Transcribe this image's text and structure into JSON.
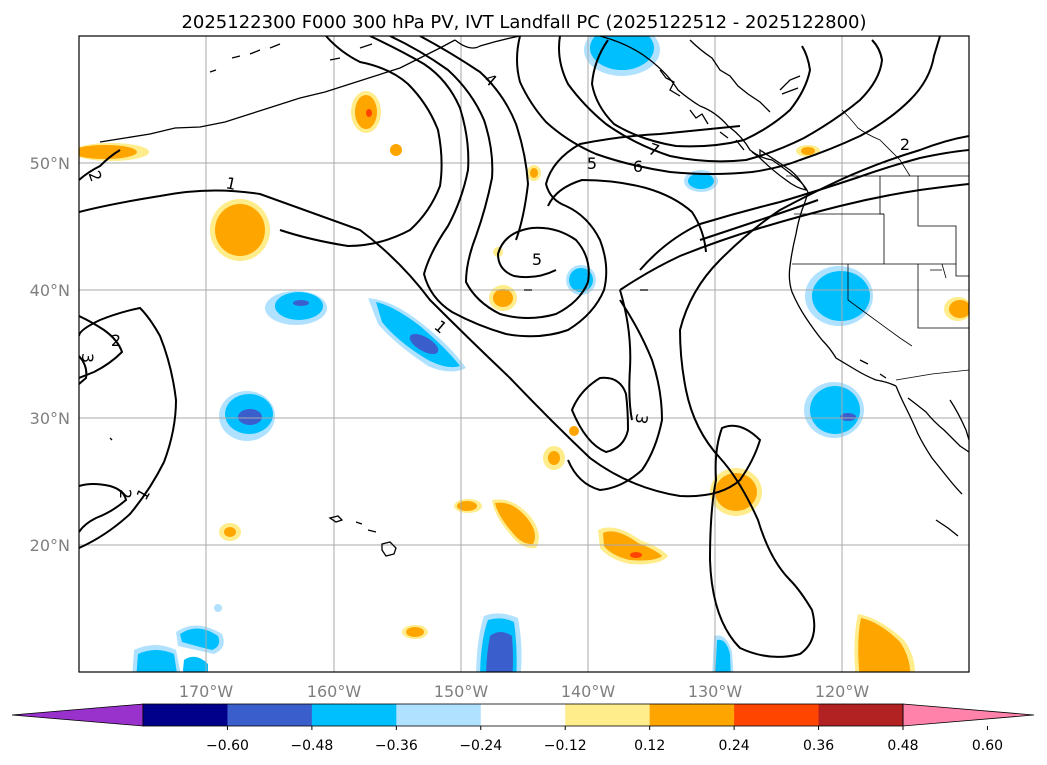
{
  "title": "2025122300 F000 300 hPa PV, IVT Landfall PC (2025122512 - 2025122800)",
  "map": {
    "lat_ticks": [
      "50°N",
      "40°N",
      "30°N",
      "20°N"
    ],
    "lon_ticks": [
      "170°W",
      "160°W",
      "150°W",
      "140°W",
      "130°W",
      "120°W"
    ],
    "contour_labels": [
      "1",
      "1",
      "1",
      "2",
      "2",
      "2",
      "2",
      "3",
      "3",
      "4",
      "5",
      "5",
      "6",
      "7"
    ]
  },
  "colorbar": {
    "colors": [
      "#9932cc",
      "#00008b",
      "#3a5fcd",
      "#00bfff",
      "#b0e2ff",
      "#ffffff",
      "#ffec8b",
      "#ffa500",
      "#ff4500",
      "#b22222",
      "#ff82ab"
    ],
    "tick_labels": [
      "−0.60",
      "−0.48",
      "−0.36",
      "−0.24",
      "−0.12",
      "0.12",
      "0.24",
      "0.36",
      "0.48",
      "0.60"
    ]
  }
}
